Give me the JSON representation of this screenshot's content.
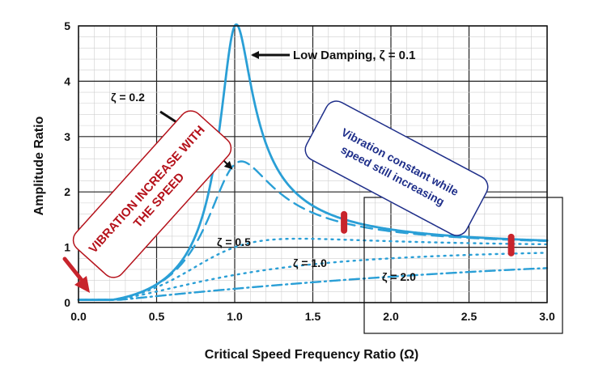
{
  "chart_data": {
    "type": "line",
    "title": "",
    "xlabel": "Critical Speed Frequency Ratio (Ω)",
    "ylabel": "Amplitude Ratio",
    "xlim": [
      0,
      3
    ],
    "ylim": [
      0,
      5
    ],
    "x_ticks": [
      "0.0",
      "0.5",
      "1.0",
      "1.5",
      "2.0",
      "2.5",
      "3.0"
    ],
    "y_ticks": [
      "0",
      "1",
      "2",
      "3",
      "4",
      "5"
    ],
    "grid": true,
    "series": [
      {
        "name": "Low Damping, ζ = 0.1",
        "zeta": 0.1,
        "style": "solid",
        "color": "#2a9fd6"
      },
      {
        "name": "ζ = 0.2",
        "zeta": 0.2,
        "style": "dashed",
        "color": "#2a9fd6"
      },
      {
        "name": "ζ = 0.5",
        "zeta": 0.5,
        "style": "dotted",
        "color": "#2a9fd6"
      },
      {
        "name": "ζ = 1.0",
        "zeta": 1.0,
        "style": "dotted",
        "color": "#2a9fd6"
      },
      {
        "name": "ζ = 2.0",
        "zeta": 2.0,
        "style": "dashdot",
        "color": "#2a9fd6"
      }
    ],
    "annotations": {
      "low_damping": "Low Damping, ζ = 0.1",
      "zeta_02": "ζ = 0.2",
      "zeta_05": "ζ = 0.5",
      "zeta_10": "ζ = 1.0",
      "zeta_20": "ζ = 2.0",
      "red_box_line1": "VIBRATION INCREASE WITH",
      "red_box_line2": "THE SPEED",
      "blue_box_line1": "Vibration constant while",
      "blue_box_line2": "speed still increasing"
    },
    "markers": [
      {
        "x": 1.7,
        "y": 1.45,
        "color": "#c8242c"
      },
      {
        "x": 2.77,
        "y": 1.04,
        "color": "#c8242c"
      }
    ],
    "colors": {
      "curve": "#2a9fd6",
      "red": "#c8242c",
      "blue": "#1f2f8a"
    }
  }
}
